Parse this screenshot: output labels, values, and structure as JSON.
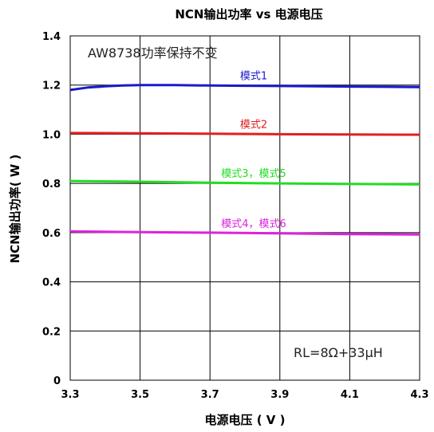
{
  "chart_data": {
    "type": "line",
    "title": "NCN输出功率 vs 电源电压",
    "xlabel": "电源电压 ( V )",
    "ylabel": "NCN输出功率( W )",
    "xlim": [
      3.3,
      4.3
    ],
    "ylim": [
      0,
      1.4
    ],
    "x_ticks": [
      "3.3",
      "3.5",
      "3.7",
      "3.9",
      "4.1",
      "4.3"
    ],
    "y_ticks": [
      "0",
      "0.2",
      "0.4",
      "0.6",
      "0.8",
      "1.0",
      "1.2",
      "1.4"
    ],
    "grid": true,
    "annotations": {
      "top_left": "AW8738功率保持不变",
      "bottom_right": "RL=8Ω+33μH"
    },
    "series": [
      {
        "name": "模式1",
        "color": "#1a1acc",
        "x": [
          3.3,
          3.35,
          3.4,
          3.45,
          3.5,
          3.6,
          3.7,
          3.8,
          3.9,
          4.0,
          4.1,
          4.2,
          4.3
        ],
        "y": [
          1.18,
          1.19,
          1.195,
          1.198,
          1.2,
          1.2,
          1.198,
          1.197,
          1.196,
          1.195,
          1.194,
          1.193,
          1.192
        ]
      },
      {
        "name": "模式2",
        "color": "#e02020",
        "x": [
          3.3,
          3.5,
          3.7,
          3.9,
          4.1,
          4.3
        ],
        "y": [
          1.005,
          1.004,
          1.002,
          1.0,
          0.999,
          0.998
        ]
      },
      {
        "name": "模式3，模式5",
        "color": "#22dd22",
        "x": [
          3.3,
          3.5,
          3.7,
          3.9,
          4.1,
          4.3
        ],
        "y": [
          0.81,
          0.807,
          0.803,
          0.8,
          0.798,
          0.796
        ]
      },
      {
        "name": "模式4，模式6",
        "color": "#dd22dd",
        "x": [
          3.3,
          3.5,
          3.7,
          3.9,
          4.1,
          4.3
        ],
        "y": [
          0.605,
          0.602,
          0.6,
          0.597,
          0.594,
          0.592
        ]
      }
    ]
  }
}
